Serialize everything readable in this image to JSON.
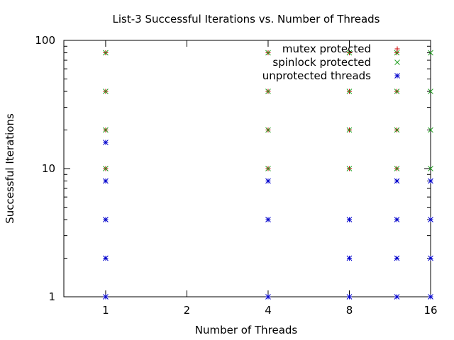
{
  "chart_data": {
    "type": "scatter",
    "title": "List-3 Successful Iterations vs. Number of Threads",
    "xlabel": "Number of Threads",
    "ylabel": "Successful Iterations",
    "x_scale": "log2",
    "y_scale": "log10",
    "xlim": [
      0.7,
      16
    ],
    "ylim": [
      1,
      100
    ],
    "x_ticks": [
      "1",
      "2",
      "4",
      "8",
      "16"
    ],
    "x_tick_values": [
      1,
      2,
      4,
      8,
      16
    ],
    "y_ticks": [
      "1",
      "10",
      "100"
    ],
    "y_tick_values": [
      1,
      10,
      100
    ],
    "legend_position": "top-right",
    "series": [
      {
        "name": "mutex protected",
        "marker": "plus",
        "color": "#cc0000",
        "points": [
          [
            1,
            10
          ],
          [
            1,
            20
          ],
          [
            1,
            40
          ],
          [
            1,
            80
          ],
          [
            4,
            10
          ],
          [
            4,
            20
          ],
          [
            4,
            40
          ],
          [
            4,
            80
          ],
          [
            8,
            10
          ],
          [
            8,
            20
          ],
          [
            8,
            40
          ],
          [
            8,
            80
          ],
          [
            12,
            10
          ],
          [
            12,
            20
          ],
          [
            12,
            40
          ],
          [
            12,
            80
          ]
        ]
      },
      {
        "name": "spinlock protected",
        "marker": "cross",
        "color": "#22a022",
        "points": [
          [
            1,
            10
          ],
          [
            1,
            20
          ],
          [
            1,
            40
          ],
          [
            1,
            80
          ],
          [
            4,
            10
          ],
          [
            4,
            20
          ],
          [
            4,
            40
          ],
          [
            4,
            80
          ],
          [
            8,
            10
          ],
          [
            8,
            20
          ],
          [
            8,
            40
          ],
          [
            8,
            80
          ],
          [
            12,
            10
          ],
          [
            12,
            20
          ],
          [
            12,
            40
          ],
          [
            12,
            80
          ],
          [
            16,
            10
          ],
          [
            16,
            20
          ],
          [
            16,
            40
          ],
          [
            16,
            80
          ]
        ]
      },
      {
        "name": "unprotected threads",
        "marker": "star",
        "color": "#0000cc",
        "points": [
          [
            1,
            1
          ],
          [
            1,
            2
          ],
          [
            1,
            4
          ],
          [
            1,
            8
          ],
          [
            1,
            16
          ],
          [
            4,
            1
          ],
          [
            4,
            4
          ],
          [
            4,
            8
          ],
          [
            8,
            1
          ],
          [
            8,
            2
          ],
          [
            8,
            4
          ],
          [
            12,
            1
          ],
          [
            12,
            2
          ],
          [
            12,
            4
          ],
          [
            12,
            8
          ],
          [
            16,
            1
          ],
          [
            16,
            2
          ],
          [
            16,
            4
          ],
          [
            16,
            8
          ]
        ]
      }
    ]
  }
}
